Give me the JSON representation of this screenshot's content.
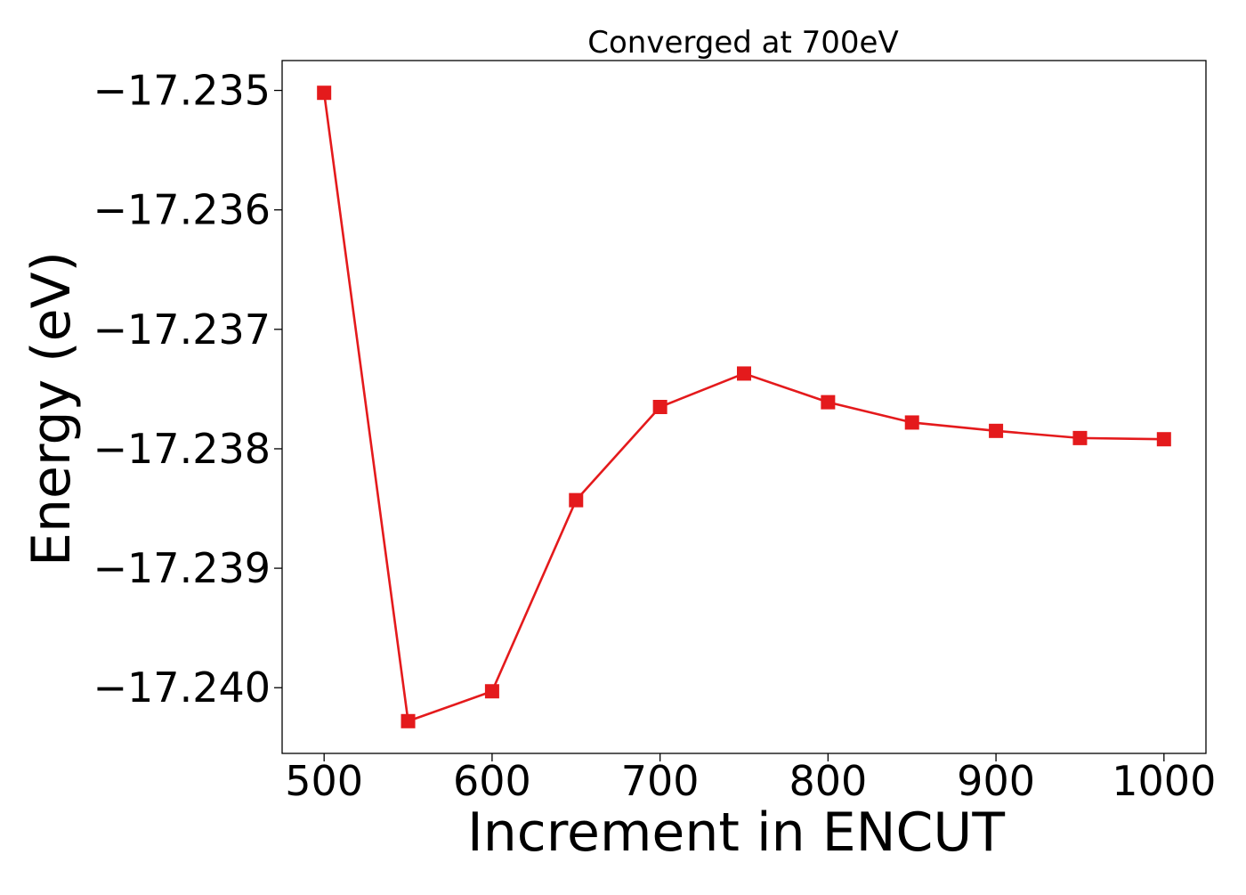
{
  "chart_data": {
    "type": "line",
    "title": "Converged at 700eV",
    "xlabel": "Increment in ENCUT",
    "ylabel": "Energy (eV)",
    "x": [
      500,
      550,
      600,
      650,
      700,
      750,
      800,
      850,
      900,
      950,
      1000
    ],
    "series": [
      {
        "values": [
          -17.23502,
          -17.24028,
          -17.24003,
          -17.23843,
          -17.23765,
          -17.23737,
          -17.23761,
          -17.23778,
          -17.23785,
          -17.23791,
          -17.23792
        ],
        "color": "#e41a1c",
        "marker": "square"
      }
    ],
    "xlim": [
      475,
      1025
    ],
    "ylim": [
      -17.24055,
      -17.23475
    ],
    "xticks": [
      500,
      600,
      700,
      800,
      900,
      1000
    ],
    "xtick_labels": [
      "500",
      "600",
      "700",
      "800",
      "900",
      "1000"
    ],
    "yticks": [
      -17.235,
      -17.236,
      -17.237,
      -17.238,
      -17.239,
      -17.24
    ],
    "ytick_labels": [
      "−17.235",
      "−17.236",
      "−17.237",
      "−17.238",
      "−17.239",
      "−17.240"
    ],
    "grid": false,
    "legend": false
  }
}
